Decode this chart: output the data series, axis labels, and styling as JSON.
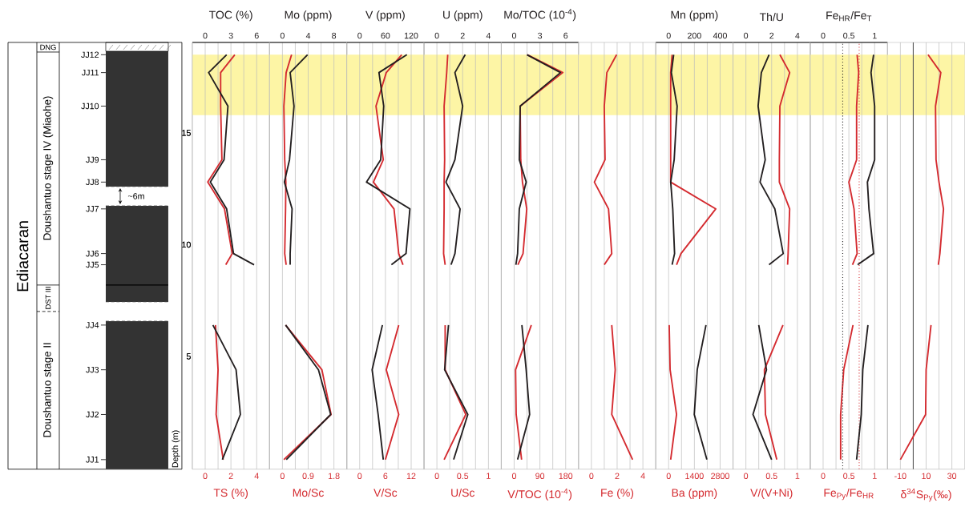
{
  "chart_data": [
    {
      "type": "other",
      "annotations": [
        "Ediacaran",
        "DNG",
        "Doushantuo stage IV (Miaohe)",
        "DST III",
        "Doushantuo stage II",
        "~6m"
      ]
    },
    {
      "type": "line",
      "x2label": "TOC (%)",
      "xlabel": "TS (%)",
      "ylabel": "Depth (m)",
      "x2lim": [
        -1.5,
        7.5
      ],
      "x2ticks": [
        0,
        3,
        6
      ],
      "xlim": [
        -1,
        5
      ],
      "xticks": [
        0,
        2,
        4
      ],
      "ylim": [
        -0.05,
        19.05
      ],
      "yticks": [
        5,
        10,
        15
      ],
      "grid": "x",
      "annotations": [
        "JJ1",
        "JJ2",
        "JJ3",
        "JJ4",
        "JJ5",
        "JJ6",
        "JJ7",
        "JJ8",
        "JJ9",
        "JJ10",
        "JJ11",
        "JJ12"
      ],
      "bands": [
        {
          "axis": "y",
          "from": 15.8,
          "to": 18.5,
          "color": "#fdf5a5"
        }
      ],
      "series": [
        {
          "color": "#d42a2f",
          "x": [
            1.4,
            0.85,
            1.0,
            0.8
          ],
          "values": [
            0.38,
            2.4,
            4.4,
            6.4
          ]
        },
        {
          "color": "#d42a2f",
          "x": [
            1.6,
            2.1,
            1.5,
            0.2,
            1.3,
            1.2,
            1.2,
            2.3
          ],
          "values": [
            9.1,
            9.6,
            11.6,
            12.8,
            13.8,
            16.2,
            17.7,
            18.5
          ]
        },
        {
          "color": "#231f20",
          "axis": "x2",
          "x": [
            2.0,
            4.1,
            3.6,
            0.9
          ],
          "values": [
            0.38,
            2.4,
            4.4,
            6.4
          ]
        },
        {
          "color": "#231f20",
          "axis": "x2",
          "x": [
            5.7,
            3.3,
            2.5,
            0.6,
            2.2,
            2.65,
            0.4,
            2.5
          ],
          "values": [
            9.1,
            9.6,
            11.6,
            12.8,
            13.8,
            16.2,
            17.7,
            18.5
          ]
        }
      ]
    },
    {
      "type": "line",
      "x2label": "Mo (ppm)",
      "xlabel": "Mo/Sc",
      "x2lim": [
        -2,
        10
      ],
      "x2ticks": [
        0,
        4,
        8
      ],
      "xlim": [
        -0.45,
        2.25
      ],
      "xticks": [
        0,
        0.9,
        1.8
      ],
      "ylim": [
        -0.05,
        19.05
      ],
      "tick_labels": "x",
      "grid": "x",
      "bands": [
        {
          "axis": "y",
          "from": 15.8,
          "to": 18.5,
          "color": "#fdf5a5"
        }
      ],
      "series": [
        {
          "color": "#d42a2f",
          "x": [
            0.05,
            1.7,
            1.38,
            0.11
          ],
          "values": [
            0.38,
            2.4,
            4.4,
            6.4
          ]
        },
        {
          "color": "#d42a2f",
          "x": [
            0.13,
            0.08,
            0.11,
            0.12,
            0.08,
            0.05,
            0.13,
            0.32
          ],
          "values": [
            9.1,
            9.6,
            11.6,
            12.8,
            13.8,
            16.2,
            17.7,
            18.5
          ]
        },
        {
          "color": "#231f20",
          "axis": "x2",
          "x": [
            0.6,
            7.5,
            5.6,
            0.5
          ],
          "values": [
            0.38,
            2.4,
            4.4,
            6.4
          ]
        },
        {
          "color": "#231f20",
          "axis": "x2",
          "x": [
            1.2,
            1.2,
            1.5,
            0.3,
            1.1,
            1.8,
            1.2,
            3.9
          ],
          "values": [
            9.1,
            9.6,
            11.6,
            12.8,
            13.8,
            16.2,
            17.7,
            18.5
          ]
        }
      ]
    },
    {
      "type": "line",
      "x2label": "V (ppm)",
      "xlabel": "V/Sc",
      "x2lim": [
        -30,
        150
      ],
      "x2ticks": [
        0,
        60,
        120
      ],
      "xlim": [
        -3,
        15
      ],
      "xticks": [
        0,
        6,
        12
      ],
      "ylim": [
        -0.05,
        19.05
      ],
      "tick_labels": "x",
      "grid": "x",
      "bands": [
        {
          "axis": "y",
          "from": 15.8,
          "to": 18.5,
          "color": "#fdf5a5"
        }
      ],
      "series": [
        {
          "color": "#d42a2f",
          "x": [
            6.0,
            9.1,
            6.2,
            9.1
          ],
          "values": [
            0.38,
            2.4,
            4.4,
            6.4
          ]
        },
        {
          "color": "#d42a2f",
          "x": [
            10.1,
            9.1,
            8.0,
            3.2,
            5.5,
            3.8,
            6.2,
            9.8
          ],
          "values": [
            9.1,
            9.6,
            11.6,
            12.8,
            13.8,
            16.2,
            17.7,
            18.5
          ]
        },
        {
          "color": "#231f20",
          "axis": "x2",
          "x": [
            55,
            43,
            29,
            53
          ],
          "values": [
            0.38,
            2.4,
            4.4,
            6.4
          ]
        },
        {
          "color": "#231f20",
          "axis": "x2",
          "x": [
            74,
            108,
            117,
            16,
            49,
            56,
            45,
            110
          ],
          "values": [
            9.1,
            9.6,
            11.6,
            12.8,
            13.8,
            16.2,
            17.7,
            18.5
          ]
        }
      ]
    },
    {
      "type": "line",
      "x2label": "U (ppm)",
      "xlabel": "U/Sc",
      "x2lim": [
        -1,
        5
      ],
      "x2ticks": [
        0,
        2,
        4
      ],
      "xlim": [
        -0.25,
        1.25
      ],
      "xticks": [
        0,
        0.5,
        1
      ],
      "ylim": [
        -0.05,
        19.05
      ],
      "tick_labels": "x",
      "grid": "x",
      "bands": [
        {
          "axis": "y",
          "from": 15.8,
          "to": 18.5,
          "color": "#fdf5a5"
        }
      ],
      "series": [
        {
          "color": "#d42a2f",
          "x": [
            0.14,
            0.56,
            0.16,
            0.16
          ],
          "values": [
            0.38,
            2.4,
            4.4,
            6.4
          ]
        },
        {
          "color": "#d42a2f",
          "x": [
            0.16,
            0.13,
            0.14,
            0.14,
            0.15,
            0.14,
            0.19,
            0.21
          ],
          "values": [
            9.1,
            9.6,
            11.6,
            12.8,
            13.8,
            16.2,
            17.7,
            18.5
          ]
        },
        {
          "color": "#231f20",
          "axis": "x2",
          "x": [
            1.3,
            2.4,
            0.6,
            0.9
          ],
          "values": [
            0.38,
            2.4,
            4.4,
            6.4
          ]
        },
        {
          "color": "#231f20",
          "axis": "x2",
          "x": [
            1.1,
            1.4,
            1.8,
            0.7,
            1.4,
            2.0,
            1.4,
            2.2
          ],
          "values": [
            9.1,
            9.6,
            11.6,
            12.8,
            13.8,
            16.2,
            17.7,
            18.5
          ]
        }
      ]
    },
    {
      "type": "line",
      "x2label": "Mo/TOC (10$^{-4}$)",
      "xlabel": "V/TOC (10$^{-4}$)",
      "x2lim": [
        -1.5,
        7.5
      ],
      "x2ticks": [
        0,
        3,
        6
      ],
      "xlim": [
        -45,
        225
      ],
      "xticks": [
        0,
        90,
        180
      ],
      "ylim": [
        -0.05,
        19.05
      ],
      "tick_labels": "x",
      "grid": "x",
      "bands": [
        {
          "axis": "y",
          "from": 15.8,
          "to": 18.5,
          "color": "#fdf5a5"
        }
      ],
      "series": [
        {
          "color": "#d42a2f",
          "x": [
            26,
            7,
            5,
            60
          ],
          "values": [
            0.38,
            2.4,
            4.4,
            6.4
          ]
        },
        {
          "color": "#d42a2f",
          "x": [
            13,
            31,
            44,
            29,
            23,
            21,
            170,
            46
          ],
          "values": [
            9.1,
            9.6,
            11.6,
            12.8,
            13.8,
            16.2,
            17.7,
            18.5
          ]
        },
        {
          "color": "#231f20",
          "axis": "x2",
          "x": [
            0.4,
            1.8,
            1.4,
            0.9
          ],
          "values": [
            0.38,
            2.4,
            4.4,
            6.4
          ]
        },
        {
          "color": "#231f20",
          "axis": "x2",
          "x": [
            0.2,
            0.4,
            0.6,
            1.4,
            0.6,
            0.7,
            5.4,
            1.5
          ],
          "values": [
            9.1,
            9.6,
            11.6,
            12.8,
            13.8,
            16.2,
            17.7,
            18.5
          ]
        }
      ]
    },
    {
      "type": "line",
      "xlabel": "Fe (%)",
      "xlim": [
        -1,
        5
      ],
      "xticks": [
        0,
        2,
        4
      ],
      "ylim": [
        -0.05,
        19.05
      ],
      "tick_labels": "x",
      "grid": "x",
      "bands": [
        {
          "axis": "y",
          "from": 15.8,
          "to": 18.5,
          "color": "#fdf5a5"
        }
      ],
      "series": [
        {
          "color": "#d42a2f",
          "x": [
            3.2,
            1.58,
            1.85,
            1.58
          ],
          "values": [
            0.38,
            2.4,
            4.4,
            6.4
          ]
        },
        {
          "color": "#d42a2f",
          "x": [
            1.0,
            1.58,
            1.33,
            0.23,
            1.06,
            1.0,
            1.2,
            1.96
          ],
          "values": [
            9.1,
            9.6,
            11.6,
            12.8,
            13.8,
            16.2,
            17.7,
            18.5
          ]
        }
      ]
    },
    {
      "type": "line",
      "x2label": "Mn (ppm)",
      "xlabel": "Ba (ppm)",
      "x2lim": [
        -100,
        500
      ],
      "x2ticks": [
        0,
        200,
        400
      ],
      "xlim": [
        -700,
        3500
      ],
      "xticks": [
        0,
        1400,
        2800
      ],
      "ylim": [
        -0.05,
        19.05
      ],
      "tick_labels": "x",
      "grid": "x",
      "bands": [
        {
          "axis": "y",
          "from": 15.8,
          "to": 18.5,
          "color": "#fdf5a5"
        }
      ],
      "series": [
        {
          "color": "#d42a2f",
          "x": [
            110,
            430,
            80,
            30
          ],
          "values": [
            0.38,
            2.4,
            4.4,
            6.4
          ]
        },
        {
          "color": "#d42a2f",
          "x": [
            430,
            670,
            2560,
            110,
            110,
            110,
            110,
            190
          ],
          "values": [
            9.1,
            9.6,
            11.6,
            12.8,
            13.8,
            16.2,
            17.7,
            18.5
          ]
        },
        {
          "color": "#231f20",
          "axis": "x2",
          "x": [
            297,
            199,
            222,
            290
          ],
          "values": [
            0.38,
            2.4,
            4.4,
            6.4
          ]
        },
        {
          "color": "#231f20",
          "axis": "x2",
          "x": [
            27,
            46,
            32,
            16,
            43,
            66,
            21,
            39
          ],
          "values": [
            9.1,
            9.6,
            11.6,
            12.8,
            13.8,
            16.2,
            17.7,
            18.5
          ]
        }
      ]
    },
    {
      "type": "line",
      "x2label": "Th/U",
      "xlabel": "V/(V+Ni)",
      "x2lim": [
        -1,
        5
      ],
      "x2ticks": [
        0,
        2,
        4
      ],
      "xlim": [
        -0.25,
        1.25
      ],
      "xticks": [
        0,
        0.5,
        1
      ],
      "ylim": [
        -0.05,
        19.05
      ],
      "tick_labels": "x",
      "grid": "x",
      "bands": [
        {
          "axis": "y",
          "from": 15.8,
          "to": 18.5,
          "color": "#fdf5a5"
        }
      ],
      "series": [
        {
          "color": "#d42a2f",
          "x": [
            0.6,
            0.38,
            0.36,
            0.72
          ],
          "values": [
            0.38,
            2.4,
            4.4,
            6.4
          ]
        },
        {
          "color": "#d42a2f",
          "x": [
            0.81,
            0.82,
            0.85,
            0.65,
            0.65,
            0.66,
            0.85,
            0.66
          ],
          "values": [
            9.1,
            9.6,
            11.6,
            12.8,
            13.8,
            16.2,
            17.7,
            18.5
          ]
        },
        {
          "color": "#231f20",
          "axis": "x2",
          "x": [
            2.0,
            0.55,
            1.6,
            1.0
          ],
          "values": [
            0.38,
            2.4,
            4.4,
            6.4
          ]
        },
        {
          "color": "#231f20",
          "axis": "x2",
          "x": [
            1.8,
            2.9,
            2.25,
            1.1,
            1.5,
            0.95,
            1.2,
            1.8
          ],
          "values": [
            9.1,
            9.6,
            11.6,
            12.8,
            13.8,
            16.2,
            17.7,
            18.5
          ]
        }
      ]
    },
    {
      "type": "line",
      "x2label": "Fe$_{HR}$/Fe$_{T}$",
      "xlabel": "Fe$_{Py}$/Fe$_{HR}$",
      "x2lim": [
        -0.25,
        1.25
      ],
      "x2ticks": [
        0,
        0.5,
        1
      ],
      "xlim": [
        -0.25,
        1.25
      ],
      "xticks": [
        0,
        0.5,
        1
      ],
      "ylim": [
        -0.05,
        19.05
      ],
      "tick_labels": "x",
      "grid": "x",
      "bands": [
        {
          "axis": "y",
          "from": 15.8,
          "to": 18.5,
          "color": "#fdf5a5"
        }
      ],
      "ref_lines": [
        {
          "axis": "x2",
          "value": 0.38,
          "color": "#231f20",
          "line_style": "dotted"
        },
        {
          "axis": "x",
          "value": 0.7,
          "color": "#d42a2f",
          "line_style": "dotted"
        }
      ],
      "series": [
        {
          "color": "#d42a2f",
          "x": [
            0.34,
            0.34,
            0.4,
            0.58
          ],
          "values": [
            0.38,
            2.4,
            4.4,
            6.4
          ]
        },
        {
          "color": "#d42a2f",
          "x": [
            0.57,
            0.66,
            0.6,
            0.5,
            0.65,
            0.65,
            0.69,
            0.66
          ],
          "values": [
            9.1,
            9.6,
            11.6,
            12.8,
            13.8,
            16.2,
            17.7,
            18.5
          ]
        },
        {
          "color": "#231f20",
          "axis": "x2",
          "x": [
            0.65,
            0.74,
            0.77,
            0.87
          ],
          "values": [
            0.38,
            2.4,
            4.4,
            6.4
          ]
        },
        {
          "color": "#231f20",
          "axis": "x2",
          "x": [
            0.67,
            0.98,
            0.89,
            0.86,
            1.0,
            1.0,
            0.93,
            0.98
          ],
          "values": [
            9.1,
            9.6,
            11.6,
            12.8,
            13.8,
            16.2,
            17.7,
            18.5
          ]
        }
      ]
    },
    {
      "type": "line",
      "xlabel": "δ$^{34}$S$_{Py}$(‰)",
      "xlim": [
        -20,
        40
      ],
      "xticks": [
        -10,
        10,
        30
      ],
      "ylim": [
        -0.05,
        19.05
      ],
      "tick_labels": "x",
      "grid": "x",
      "bands": [
        {
          "axis": "y",
          "from": 15.8,
          "to": 18.5,
          "color": "#fdf5a5"
        }
      ],
      "ref_lines": [
        {
          "axis": "x",
          "value": 0,
          "color": "#555555",
          "line_style": "solid"
        }
      ],
      "series": [
        {
          "color": "#d42a2f",
          "x": [
            -10,
            9.6,
            10,
            13.8
          ],
          "values": [
            0.38,
            2.4,
            4.4,
            6.4
          ]
        },
        {
          "color": "#d42a2f",
          "x": [
            19.5,
            20.7,
            23.5,
            20,
            17.7,
            17.3,
            21.4,
            11.5
          ],
          "values": [
            9.1,
            9.6,
            11.6,
            12.8,
            13.8,
            16.2,
            17.7,
            18.5
          ]
        }
      ]
    }
  ]
}
